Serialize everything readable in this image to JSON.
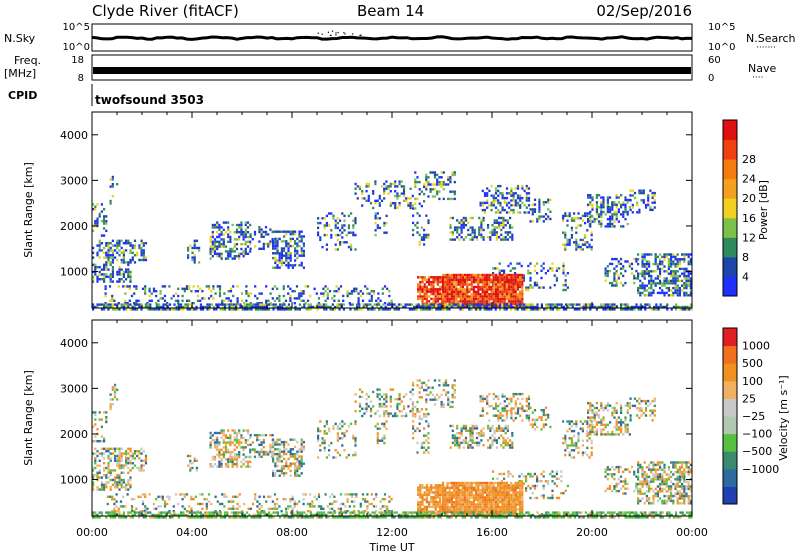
{
  "header": {
    "station": "Clyde River (fitACF)",
    "beam": "Beam 14",
    "date": "02/Sep/2016"
  },
  "nsky_panel": {
    "left_label": "N.Sky",
    "left_ticks": [
      "10^5",
      "10^0"
    ],
    "right_ticks": [
      "10^5",
      "10^0"
    ],
    "right_label": "N.Search",
    "right_legend": "·······"
  },
  "freq_panel": {
    "left_label_line1": "Freq.",
    "left_label_line2": "[MHz]",
    "left_ticks": [
      "18",
      "8"
    ],
    "right_ticks": [
      "60",
      "0"
    ],
    "right_label": "Nave",
    "right_legend": "····"
  },
  "cpid_panel": {
    "label": "CPID",
    "program": "twofsound 3503"
  },
  "x_axis": {
    "title": "Time UT",
    "ticks": [
      "00:00",
      "04:00",
      "08:00",
      "12:00",
      "16:00",
      "20:00",
      "00:00"
    ]
  },
  "chart_data": [
    {
      "type": "heatmap",
      "name": "power",
      "ylabel": "Slant Range [km]",
      "y_ticks": [
        "1000",
        "2000",
        "3000",
        "4000"
      ],
      "ylim": [
        200,
        4500
      ],
      "xlim_hours": [
        0,
        24
      ],
      "colorbar": {
        "label": "Power [dB]",
        "ticks": [
          "4",
          "8",
          "12",
          "16",
          "20",
          "24",
          "28"
        ],
        "colors": [
          "#1e2fff",
          "#1e45a8",
          "#2e8a5e",
          "#7cc24a",
          "#f0d020",
          "#f5a020",
          "#f57a10",
          "#f04010",
          "#e01010"
        ]
      }
    },
    {
      "type": "heatmap",
      "name": "velocity",
      "ylabel": "Slant Range [km]",
      "y_ticks": [
        "1000",
        "2000",
        "3000",
        "4000"
      ],
      "ylim": [
        200,
        4500
      ],
      "xlim_hours": [
        0,
        24
      ],
      "colorbar": {
        "label": "Velocity [m s⁻¹]",
        "ticks": [
          "1000",
          "500",
          "100",
          "25",
          "−25",
          "−100",
          "−500",
          "−1000"
        ],
        "colors": [
          "#2040b0",
          "#2e6aa0",
          "#3a8a70",
          "#58c040",
          "#b0c8b0",
          "#c8c8c8",
          "#f0b060",
          "#f09020",
          "#f07020",
          "#e02020"
        ]
      }
    }
  ],
  "scatter_regions": [
    {
      "t0": 0.0,
      "t1": 1.5,
      "r0": 800,
      "r1": 1700,
      "d": 0.5
    },
    {
      "t0": 0.0,
      "t1": 0.6,
      "r0": 1800,
      "r1": 2500,
      "d": 0.3
    },
    {
      "t0": 0.7,
      "t1": 1.0,
      "r0": 2500,
      "r1": 3100,
      "d": 0.35
    },
    {
      "t0": 1.5,
      "t1": 2.2,
      "r0": 1200,
      "r1": 1700,
      "d": 0.5
    },
    {
      "t0": 3.8,
      "t1": 4.3,
      "r0": 1200,
      "r1": 1700,
      "d": 0.3
    },
    {
      "t0": 4.7,
      "t1": 6.3,
      "r0": 1300,
      "r1": 2100,
      "d": 0.5
    },
    {
      "t0": 6.3,
      "t1": 7.2,
      "r0": 1500,
      "r1": 2000,
      "d": 0.4
    },
    {
      "t0": 7.2,
      "t1": 8.5,
      "r0": 1100,
      "r1": 1900,
      "d": 0.55
    },
    {
      "t0": 9.0,
      "t1": 10.5,
      "r0": 1500,
      "r1": 2300,
      "d": 0.3
    },
    {
      "t0": 10.5,
      "t1": 12.8,
      "r0": 2400,
      "r1": 3000,
      "d": 0.3
    },
    {
      "t0": 11.3,
      "t1": 11.8,
      "r0": 1800,
      "r1": 2300,
      "d": 0.3
    },
    {
      "t0": 12.8,
      "t1": 13.5,
      "r0": 1600,
      "r1": 3200,
      "d": 0.25
    },
    {
      "t0": 13.5,
      "t1": 14.5,
      "r0": 2600,
      "r1": 3200,
      "d": 0.4
    },
    {
      "t0": 14.3,
      "t1": 15.7,
      "r0": 1700,
      "r1": 2200,
      "d": 0.45
    },
    {
      "t0": 15.5,
      "t1": 17.5,
      "r0": 2300,
      "r1": 2900,
      "d": 0.4
    },
    {
      "t0": 15.8,
      "t1": 16.8,
      "r0": 1700,
      "r1": 2200,
      "d": 0.5
    },
    {
      "t0": 16.0,
      "t1": 19.0,
      "r0": 600,
      "r1": 1200,
      "d": 0.25
    },
    {
      "t0": 17.5,
      "t1": 18.3,
      "r0": 2100,
      "r1": 2600,
      "d": 0.35
    },
    {
      "t0": 18.8,
      "t1": 20.0,
      "r0": 1500,
      "r1": 2300,
      "d": 0.35
    },
    {
      "t0": 19.8,
      "t1": 21.5,
      "r0": 2000,
      "r1": 2700,
      "d": 0.45
    },
    {
      "t0": 21.5,
      "t1": 22.5,
      "r0": 2300,
      "r1": 2800,
      "d": 0.4
    },
    {
      "t0": 20.5,
      "t1": 21.8,
      "r0": 700,
      "r1": 1300,
      "d": 0.35
    },
    {
      "t0": 21.8,
      "t1": 24.0,
      "r0": 500,
      "r1": 1400,
      "d": 0.6
    },
    {
      "t0": 0.5,
      "t1": 12.0,
      "r0": 300,
      "r1": 700,
      "d": 0.25
    }
  ],
  "dense_regions": [
    {
      "t0": 13.0,
      "t1": 14.0,
      "r0": 250,
      "r1": 900,
      "d": 0.75
    },
    {
      "t0": 14.0,
      "t1": 17.2,
      "r0": 250,
      "r1": 950,
      "d": 0.95
    },
    {
      "t0": 0.0,
      "t1": 24.0,
      "r0": 180,
      "r1": 300,
      "d": 0.7
    }
  ]
}
